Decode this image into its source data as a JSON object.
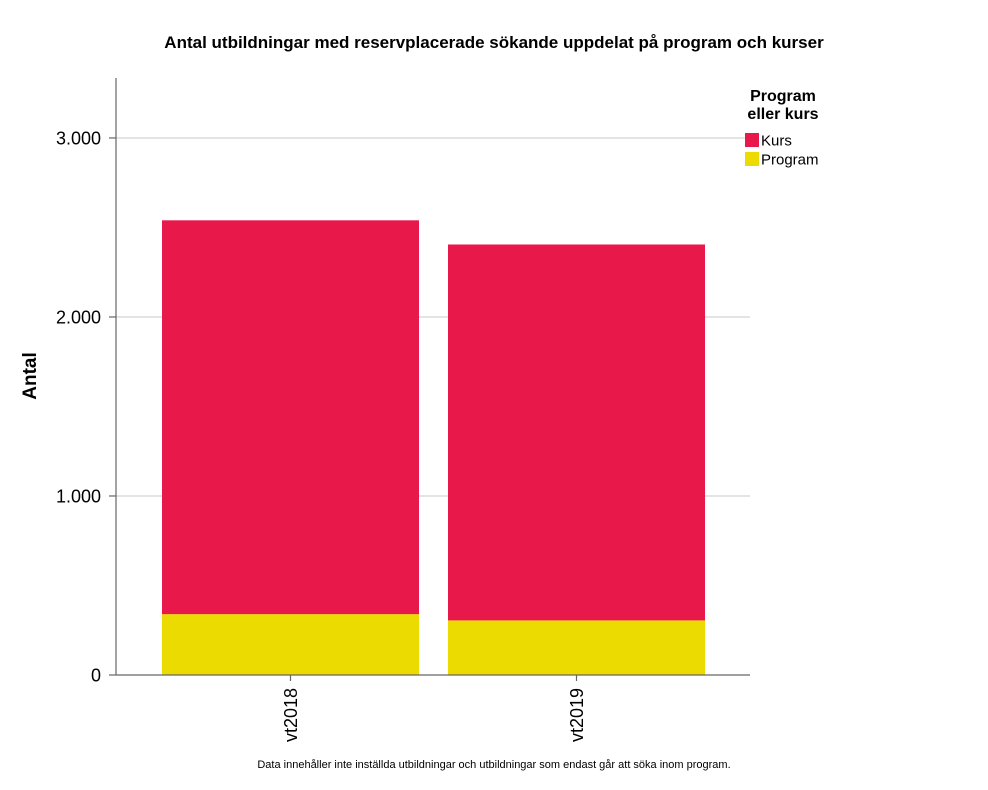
{
  "chart_data": {
    "type": "bar",
    "stacked": true,
    "title": "Antal utbildningar med reservplacerade sökande uppdelat på program och kurser",
    "xlabel": "",
    "ylabel": "Antal",
    "categories": [
      "vt2018",
      "vt2019"
    ],
    "series": [
      {
        "name": "Program",
        "values": [
          340,
          305
        ],
        "color": "#EBDB00"
      },
      {
        "name": "Kurs",
        "values": [
          2200,
          2100
        ],
        "color": "#E8194A"
      }
    ],
    "ylim": [
      0,
      3335
    ],
    "yticks": [
      0,
      1000,
      2000,
      3000
    ],
    "ytick_labels": [
      "0",
      "1.000",
      "2.000",
      "3.000"
    ],
    "grid": true,
    "legend": {
      "title_lines": [
        "Program",
        "eller kurs"
      ],
      "position": "top-right"
    },
    "footnote": "Data innehåller inte inställda utbildningar och utbildningar som endast går att söka inom program."
  }
}
